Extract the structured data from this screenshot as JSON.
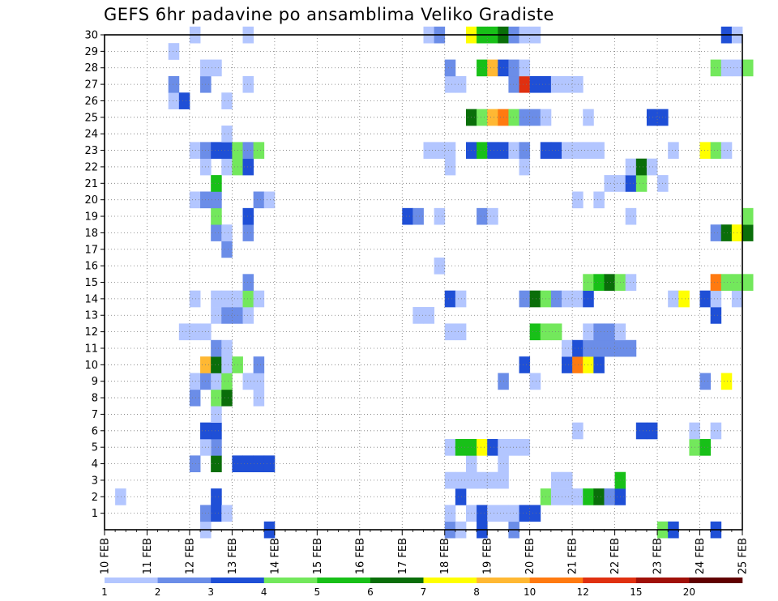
{
  "chart_data": {
    "type": "heatmap",
    "title": "GEFS 6hr padavine po ansamblima Veliko Gradiste",
    "x_ticks": [
      "10 FEB",
      "11 FEB",
      "12 FEB",
      "13 FEB",
      "14 FEB",
      "15 FEB",
      "16 FEB",
      "17 FEB",
      "18 FEB",
      "19 FEB",
      "20 FEB",
      "21 FEB",
      "22 FEB",
      "23 FEB",
      "24 FEB",
      "25 FEB"
    ],
    "y_ticks": [
      "1",
      "2",
      "3",
      "4",
      "5",
      "6",
      "7",
      "8",
      "9",
      "10",
      "11",
      "12",
      "13",
      "14",
      "15",
      "16",
      "17",
      "18",
      "19",
      "20",
      "21",
      "22",
      "23",
      "24",
      "25",
      "26",
      "27",
      "28",
      "29",
      "30"
    ],
    "grid": true,
    "legend_placement": "bottom",
    "colorbar": {
      "labels": [
        "1",
        "2",
        "3",
        "4",
        "5",
        "6",
        "7",
        "8",
        "10",
        "12",
        "15",
        "20"
      ],
      "colors": [
        "#b3c6ff",
        "#6b8de8",
        "#1f4fd6",
        "#73e85c",
        "#18c018",
        "#0a6e0a",
        "#ffff00",
        "#ffb833",
        "#ff7a10",
        "#e03010",
        "#a01008",
        "#600000"
      ]
    },
    "cells": [
      [
        "12 FEB 06",
        0,
        1
      ],
      [
        "12 FEB 06",
        1,
        2
      ],
      [
        "12 FEB 12",
        1,
        3
      ],
      [
        "12 FEB 12",
        2,
        3
      ],
      [
        "12 FEB 18",
        1,
        1
      ],
      [
        "13 FEB 18",
        0,
        3
      ],
      [
        "10 FEB 06",
        2,
        1
      ],
      [
        "18 FEB 00",
        0,
        2
      ],
      [
        "18 FEB 00",
        1,
        1
      ],
      [
        "18 FEB 06",
        0,
        1
      ],
      [
        "18 FEB 06",
        2,
        3
      ],
      [
        "18 FEB 12",
        1,
        1
      ],
      [
        "18 FEB 18",
        0,
        3
      ],
      [
        "18 FEB 18",
        1,
        3
      ],
      [
        "19 FEB 00",
        1,
        1
      ],
      [
        "19 FEB 06",
        1,
        1
      ],
      [
        "19 FEB 12",
        0,
        2
      ],
      [
        "19 FEB 12",
        1,
        1
      ],
      [
        "19 FEB 18",
        1,
        3
      ],
      [
        "20 FEB 00",
        1,
        3
      ],
      [
        "23 FEB 00",
        0,
        1
      ],
      [
        "23 FEB 00",
        0,
        4
      ],
      [
        "23 FEB 06",
        0,
        3
      ],
      [
        "24 FEB 06",
        0,
        3
      ],
      [
        "20 FEB 06",
        2,
        4
      ],
      [
        "20 FEB 12",
        2,
        1
      ],
      [
        "20 FEB 18",
        2,
        1
      ],
      [
        "21 FEB 00",
        2,
        1
      ],
      [
        "21 FEB 06",
        2,
        5
      ],
      [
        "21 FEB 12",
        2,
        6
      ],
      [
        "21 FEB 18",
        2,
        2
      ],
      [
        "22 FEB 00",
        2,
        3
      ],
      [
        "20 FEB 12",
        3,
        1
      ],
      [
        "20 FEB 18",
        3,
        1
      ],
      [
        "22 FEB 00",
        3,
        5
      ],
      [
        "18 FEB 00",
        3,
        1
      ],
      [
        "18 FEB 06",
        3,
        1
      ],
      [
        "18 FEB 12",
        3,
        1
      ],
      [
        "18 FEB 18",
        3,
        1
      ],
      [
        "19 FEB 00",
        3,
        1
      ],
      [
        "19 FEB 06",
        3,
        1
      ],
      [
        "12 FEB 00",
        4,
        2
      ],
      [
        "12 FEB 12",
        4,
        6
      ],
      [
        "13 FEB 00",
        4,
        3
      ],
      [
        "13 FEB 06",
        4,
        3
      ],
      [
        "13 FEB 12",
        4,
        3
      ],
      [
        "13 FEB 18",
        4,
        3
      ],
      [
        "18 FEB 12",
        4,
        1
      ],
      [
        "19 FEB 06",
        4,
        1
      ],
      [
        "12 FEB 12",
        5,
        2
      ],
      [
        "12 FEB 06",
        5,
        1
      ],
      [
        "18 FEB 00",
        5,
        1
      ],
      [
        "18 FEB 06",
        5,
        5
      ],
      [
        "18 FEB 12",
        5,
        5
      ],
      [
        "18 FEB 18",
        5,
        7
      ],
      [
        "19 FEB 00",
        5,
        3
      ],
      [
        "19 FEB 06",
        5,
        1
      ],
      [
        "19 FEB 12",
        5,
        1
      ],
      [
        "19 FEB 18",
        5,
        1
      ],
      [
        "23 FEB 18",
        5,
        4
      ],
      [
        "24 FEB 00",
        5,
        5
      ],
      [
        "12 FEB 06",
        6,
        3
      ],
      [
        "12 FEB 12",
        6,
        3
      ],
      [
        "21 FEB 00",
        6,
        1
      ],
      [
        "22 FEB 12",
        6,
        3
      ],
      [
        "22 FEB 18",
        6,
        3
      ],
      [
        "23 FEB 18",
        6,
        1
      ],
      [
        "24 FEB 06",
        6,
        1
      ],
      [
        "12 FEB 12",
        7,
        1
      ],
      [
        "12 FEB 00",
        8,
        2
      ],
      [
        "12 FEB 12",
        8,
        4
      ],
      [
        "12 FEB 18",
        8,
        6
      ],
      [
        "13 FEB 12",
        8,
        1
      ],
      [
        "12 FEB 00",
        9,
        1
      ],
      [
        "12 FEB 06",
        9,
        2
      ],
      [
        "12 FEB 12",
        9,
        1
      ],
      [
        "12 FEB 18",
        9,
        4
      ],
      [
        "13 FEB 06",
        9,
        1
      ],
      [
        "13 FEB 12",
        9,
        1
      ],
      [
        "19 FEB 06",
        9,
        2
      ],
      [
        "20 FEB 00",
        9,
        1
      ],
      [
        "24 FEB 00",
        9,
        2
      ],
      [
        "24 FEB 12",
        9,
        7
      ],
      [
        "12 FEB 06",
        10,
        8
      ],
      [
        "12 FEB 12",
        10,
        6
      ],
      [
        "12 FEB 18",
        10,
        1
      ],
      [
        "13 FEB 00",
        10,
        4
      ],
      [
        "13 FEB 12",
        10,
        2
      ],
      [
        "19 FEB 18",
        10,
        3
      ],
      [
        "20 FEB 18",
        10,
        3
      ],
      [
        "21 FEB 00",
        10,
        9
      ],
      [
        "21 FEB 06",
        10,
        7
      ],
      [
        "21 FEB 12",
        10,
        3
      ],
      [
        "12 FEB 12",
        11,
        2
      ],
      [
        "12 FEB 18",
        11,
        1
      ],
      [
        "20 FEB 18",
        11,
        1
      ],
      [
        "21 FEB 00",
        11,
        3
      ],
      [
        "21 FEB 06",
        11,
        2
      ],
      [
        "21 FEB 12",
        11,
        2
      ],
      [
        "21 FEB 18",
        11,
        2
      ],
      [
        "22 FEB 00",
        11,
        2
      ],
      [
        "22 FEB 06",
        11,
        2
      ],
      [
        "11 FEB 18",
        12,
        1
      ],
      [
        "12 FEB 00",
        12,
        1
      ],
      [
        "12 FEB 06",
        12,
        1
      ],
      [
        "18 FEB 00",
        12,
        1
      ],
      [
        "18 FEB 06",
        12,
        1
      ],
      [
        "20 FEB 00",
        12,
        5
      ],
      [
        "20 FEB 06",
        12,
        4
      ],
      [
        "20 FEB 12",
        12,
        4
      ],
      [
        "21 FEB 06",
        12,
        1
      ],
      [
        "21 FEB 12",
        12,
        2
      ],
      [
        "21 FEB 18",
        12,
        2
      ],
      [
        "22 FEB 00",
        12,
        1
      ],
      [
        "12 FEB 12",
        13,
        1
      ],
      [
        "12 FEB 18",
        13,
        2
      ],
      [
        "13 FEB 00",
        13,
        2
      ],
      [
        "13 FEB 06",
        13,
        1
      ],
      [
        "17 FEB 06",
        13,
        1
      ],
      [
        "17 FEB 12",
        13,
        1
      ],
      [
        "24 FEB 06",
        13,
        3
      ],
      [
        "12 FEB 00",
        14,
        1
      ],
      [
        "12 FEB 12",
        14,
        1
      ],
      [
        "12 FEB 18",
        14,
        1
      ],
      [
        "13 FEB 00",
        14,
        1
      ],
      [
        "13 FEB 06",
        14,
        4
      ],
      [
        "13 FEB 12",
        14,
        1
      ],
      [
        "18 FEB 00",
        14,
        3
      ],
      [
        "18 FEB 06",
        14,
        1
      ],
      [
        "19 FEB 18",
        14,
        2
      ],
      [
        "20 FEB 00",
        14,
        6
      ],
      [
        "20 FEB 06",
        14,
        4
      ],
      [
        "20 FEB 12",
        14,
        2
      ],
      [
        "20 FEB 18",
        14,
        1
      ],
      [
        "21 FEB 00",
        14,
        1
      ],
      [
        "21 FEB 06",
        14,
        3
      ],
      [
        "23 FEB 06",
        14,
        1
      ],
      [
        "23 FEB 12",
        14,
        7
      ],
      [
        "24 FEB 00",
        14,
        3
      ],
      [
        "24 FEB 06",
        14,
        1
      ],
      [
        "24 FEB 18",
        14,
        1
      ],
      [
        "13 FEB 06",
        15,
        2
      ],
      [
        "21 FEB 06",
        15,
        4
      ],
      [
        "21 FEB 12",
        15,
        5
      ],
      [
        "21 FEB 18",
        15,
        6
      ],
      [
        "22 FEB 00",
        15,
        4
      ],
      [
        "22 FEB 06",
        15,
        1
      ],
      [
        "24 FEB 06",
        15,
        9
      ],
      [
        "24 FEB 12",
        15,
        4
      ],
      [
        "24 FEB 18",
        15,
        4
      ],
      [
        "25 FEB 00",
        15,
        4
      ],
      [
        "17 FEB 18",
        16,
        1
      ],
      [
        "12 FEB 18",
        17,
        2
      ],
      [
        "12 FEB 12",
        18,
        2
      ],
      [
        "12 FEB 18",
        18,
        1
      ],
      [
        "13 FEB 06",
        18,
        2
      ],
      [
        "24 FEB 06",
        18,
        2
      ],
      [
        "24 FEB 12",
        18,
        6
      ],
      [
        "24 FEB 18",
        18,
        7
      ],
      [
        "25 FEB 00",
        18,
        6
      ],
      [
        "12 FEB 12",
        19,
        4
      ],
      [
        "13 FEB 06",
        19,
        3
      ],
      [
        "17 FEB 00",
        19,
        3
      ],
      [
        "17 FEB 06",
        19,
        2
      ],
      [
        "17 FEB 18",
        19,
        1
      ],
      [
        "18 FEB 18",
        19,
        2
      ],
      [
        "19 FEB 00",
        19,
        1
      ],
      [
        "22 FEB 06",
        19,
        1
      ],
      [
        "25 FEB 00",
        19,
        4
      ],
      [
        "12 FEB 00",
        20,
        1
      ],
      [
        "12 FEB 06",
        20,
        2
      ],
      [
        "12 FEB 12",
        20,
        2
      ],
      [
        "13 FEB 12",
        20,
        2
      ],
      [
        "13 FEB 18",
        20,
        1
      ],
      [
        "21 FEB 00",
        20,
        1
      ],
      [
        "21 FEB 12",
        20,
        1
      ],
      [
        "12 FEB 12",
        21,
        5
      ],
      [
        "21 FEB 18",
        21,
        1
      ],
      [
        "22 FEB 00",
        21,
        1
      ],
      [
        "22 FEB 06",
        21,
        3
      ],
      [
        "22 FEB 12",
        21,
        4
      ],
      [
        "23 FEB 00",
        21,
        1
      ],
      [
        "12 FEB 06",
        22,
        1
      ],
      [
        "12 FEB 18",
        22,
        1
      ],
      [
        "13 FEB 00",
        22,
        4
      ],
      [
        "13 FEB 06",
        22,
        3
      ],
      [
        "18 FEB 00",
        22,
        1
      ],
      [
        "19 FEB 18",
        22,
        1
      ],
      [
        "22 FEB 06",
        22,
        1
      ],
      [
        "22 FEB 12",
        22,
        6
      ],
      [
        "22 FEB 18",
        22,
        1
      ],
      [
        "12 FEB 00",
        23,
        1
      ],
      [
        "12 FEB 06",
        23,
        2
      ],
      [
        "12 FEB 12",
        23,
        3
      ],
      [
        "12 FEB 18",
        23,
        3
      ],
      [
        "13 FEB 00",
        23,
        4
      ],
      [
        "13 FEB 06",
        23,
        2
      ],
      [
        "13 FEB 12",
        23,
        4
      ],
      [
        "17 FEB 12",
        23,
        1
      ],
      [
        "17 FEB 18",
        23,
        1
      ],
      [
        "18 FEB 00",
        23,
        1
      ],
      [
        "18 FEB 12",
        23,
        3
      ],
      [
        "18 FEB 18",
        23,
        5
      ],
      [
        "19 FEB 00",
        23,
        3
      ],
      [
        "19 FEB 06",
        23,
        3
      ],
      [
        "19 FEB 12",
        23,
        1
      ],
      [
        "19 FEB 18",
        23,
        2
      ],
      [
        "20 FEB 06",
        23,
        3
      ],
      [
        "20 FEB 12",
        23,
        3
      ],
      [
        "20 FEB 18",
        23,
        1
      ],
      [
        "21 FEB 00",
        23,
        1
      ],
      [
        "21 FEB 06",
        23,
        1
      ],
      [
        "21 FEB 12",
        23,
        1
      ],
      [
        "23 FEB 06",
        23,
        1
      ],
      [
        "24 FEB 00",
        23,
        7
      ],
      [
        "24 FEB 06",
        23,
        4
      ],
      [
        "24 FEB 12",
        23,
        1
      ],
      [
        "12 FEB 18",
        24,
        1
      ],
      [
        "18 FEB 12",
        25,
        6
      ],
      [
        "18 FEB 18",
        25,
        4
      ],
      [
        "19 FEB 00",
        25,
        8
      ],
      [
        "19 FEB 06",
        25,
        9
      ],
      [
        "19 FEB 12",
        25,
        4
      ],
      [
        "19 FEB 18",
        25,
        2
      ],
      [
        "20 FEB 00",
        25,
        2
      ],
      [
        "20 FEB 06",
        25,
        1
      ],
      [
        "21 FEB 06",
        25,
        1
      ],
      [
        "22 FEB 18",
        25,
        3
      ],
      [
        "23 FEB 00",
        25,
        3
      ],
      [
        "11 FEB 12",
        26,
        1
      ],
      [
        "11 FEB 18",
        26,
        3
      ],
      [
        "12 FEB 18",
        26,
        1
      ],
      [
        "11 FEB 12",
        27,
        2
      ],
      [
        "12 FEB 06",
        27,
        2
      ],
      [
        "13 FEB 06",
        27,
        1
      ],
      [
        "18 FEB 00",
        27,
        1
      ],
      [
        "18 FEB 06",
        27,
        1
      ],
      [
        "19 FEB 12",
        27,
        2
      ],
      [
        "19 FEB 18",
        27,
        10
      ],
      [
        "20 FEB 00",
        27,
        3
      ],
      [
        "20 FEB 06",
        27,
        3
      ],
      [
        "20 FEB 12",
        27,
        1
      ],
      [
        "20 FEB 18",
        27,
        1
      ],
      [
        "21 FEB 00",
        27,
        1
      ],
      [
        "12 FEB 06",
        28,
        1
      ],
      [
        "12 FEB 12",
        28,
        1
      ],
      [
        "18 FEB 00",
        28,
        2
      ],
      [
        "18 FEB 18",
        28,
        5
      ],
      [
        "19 FEB 00",
        28,
        8
      ],
      [
        "19 FEB 06",
        28,
        3
      ],
      [
        "19 FEB 12",
        28,
        2
      ],
      [
        "19 FEB 18",
        28,
        1
      ],
      [
        "24 FEB 06",
        28,
        4
      ],
      [
        "24 FEB 12",
        28,
        1
      ],
      [
        "24 FEB 18",
        28,
        1
      ],
      [
        "25 FEB 00",
        28,
        4
      ],
      [
        "11 FEB 12",
        29,
        1
      ],
      [
        "12 FEB 00",
        30,
        1
      ],
      [
        "13 FEB 06",
        30,
        1
      ],
      [
        "17 FEB 12",
        30,
        1
      ],
      [
        "17 FEB 18",
        30,
        2
      ],
      [
        "18 FEB 12",
        30,
        7
      ],
      [
        "18 FEB 18",
        30,
        5
      ],
      [
        "19 FEB 00",
        30,
        5
      ],
      [
        "19 FEB 06",
        30,
        6
      ],
      [
        "19 FEB 12",
        30,
        2
      ],
      [
        "19 FEB 18",
        30,
        1
      ],
      [
        "20 FEB 00",
        30,
        1
      ],
      [
        "24 FEB 12",
        30,
        3
      ],
      [
        "24 FEB 18",
        30,
        1
      ]
    ]
  }
}
